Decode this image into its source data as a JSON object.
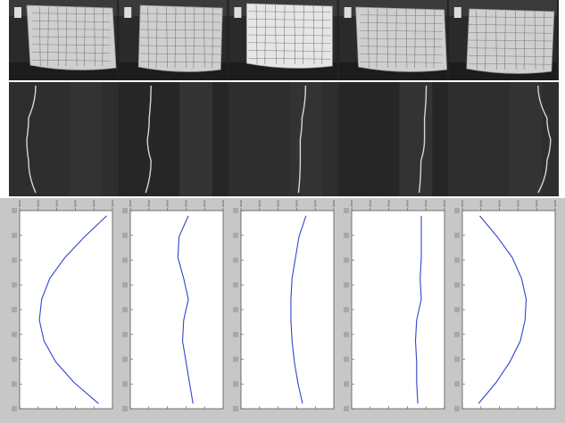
{
  "row_photos": {
    "panels": [
      {
        "id": "photo-1"
      },
      {
        "id": "photo-2"
      },
      {
        "id": "photo-3"
      },
      {
        "id": "photo-4"
      },
      {
        "id": "photo-5"
      }
    ]
  },
  "row_profiles": {
    "panels": [
      {
        "id": "profile-1"
      },
      {
        "id": "profile-2"
      },
      {
        "id": "profile-3"
      },
      {
        "id": "profile-4"
      },
      {
        "id": "profile-5"
      }
    ]
  },
  "chart_data": [
    {
      "type": "line",
      "title": "",
      "xlabel": "",
      "ylabel": "",
      "series": [
        {
          "values": [
            [
              300,
              0
            ],
            [
              262,
              80
            ],
            [
              228,
              160
            ],
            [
              202,
              240
            ],
            [
              188,
              320
            ],
            [
              184,
              400
            ],
            [
              192,
              480
            ],
            [
              212,
              560
            ],
            [
              244,
              640
            ],
            [
              286,
              720
            ]
          ]
        }
      ],
      "color": "#3344cc"
    },
    {
      "type": "line",
      "series": [
        {
          "values": [
            [
              250,
              0
            ],
            [
              234,
              80
            ],
            [
              232,
              160
            ],
            [
              242,
              240
            ],
            [
              250,
              320
            ],
            [
              242,
              400
            ],
            [
              240,
              480
            ],
            [
              246,
              560
            ],
            [
              252,
              640
            ],
            [
              258,
              720
            ]
          ]
        }
      ],
      "color": "#3344cc"
    },
    {
      "type": "line",
      "series": [
        {
          "values": [
            [
              262,
              0
            ],
            [
              250,
              80
            ],
            [
              244,
              160
            ],
            [
              238,
              240
            ],
            [
              236,
              320
            ],
            [
              236,
              400
            ],
            [
              238,
              480
            ],
            [
              242,
              560
            ],
            [
              248,
              640
            ],
            [
              256,
              720
            ]
          ]
        }
      ],
      "color": "#3344cc"
    },
    {
      "type": "line",
      "series": [
        {
          "values": [
            [
              270,
              0
            ],
            [
              270,
              80
            ],
            [
              270,
              160
            ],
            [
              268,
              240
            ],
            [
              270,
              320
            ],
            [
              262,
              400
            ],
            [
              260,
              480
            ],
            [
              262,
              560
            ],
            [
              262,
              640
            ],
            [
              264,
              720
            ]
          ]
        }
      ],
      "color": "#3344cc"
    },
    {
      "type": "line",
      "series": [
        {
          "values": [
            [
              180,
              0
            ],
            [
              210,
              80
            ],
            [
              236,
              160
            ],
            [
              252,
              240
            ],
            [
              260,
              320
            ],
            [
              258,
              400
            ],
            [
              250,
              480
            ],
            [
              232,
              560
            ],
            [
              208,
              640
            ],
            [
              178,
              720
            ]
          ]
        }
      ],
      "color": "#3344cc"
    }
  ]
}
